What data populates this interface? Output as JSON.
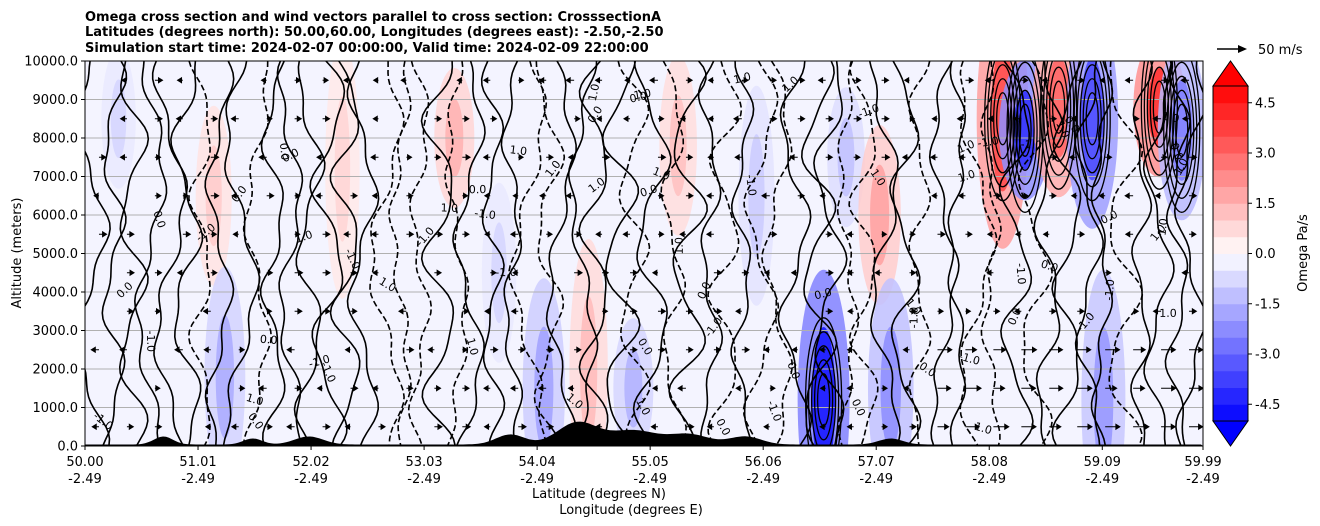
{
  "chart_data": {
    "type": "heatmap",
    "title_lines": [
      "Omega cross section and wind vectors parallel to cross section: CrosssectionA",
      "Latitudes (degrees north): 50.00,60.00, Longitudes (degrees east): -2.50,-2.50",
      "Simulation start time: 2024-02-07 00:00:00, Valid time: 2024-02-09 22:00:00"
    ],
    "ylabel": "Altitude (meters)",
    "xlabel_lines": [
      "Latitude (degrees N)",
      "Longitude (degrees E)"
    ],
    "y_ticks": [
      "0.0",
      "1000.0",
      "2000.0",
      "3000.0",
      "4000.0",
      "5000.0",
      "6000.0",
      "7000.0",
      "8000.0",
      "9000.0",
      "10000.0"
    ],
    "ylim": [
      0,
      10000
    ],
    "x_ticks": [
      {
        "lat": "50.00",
        "lon": "-2.49"
      },
      {
        "lat": "51.01",
        "lon": "-2.49"
      },
      {
        "lat": "52.02",
        "lon": "-2.49"
      },
      {
        "lat": "53.03",
        "lon": "-2.49"
      },
      {
        "lat": "54.04",
        "lon": "-2.49"
      },
      {
        "lat": "55.05",
        "lon": "-2.49"
      },
      {
        "lat": "56.06",
        "lon": "-2.49"
      },
      {
        "lat": "57.07",
        "lon": "-2.49"
      },
      {
        "lat": "58.08",
        "lon": "-2.49"
      },
      {
        "lat": "59.09",
        "lon": "-2.49"
      },
      {
        "lat": "59.99",
        "lon": "-2.49"
      }
    ],
    "xlim": [
      50.0,
      59.99
    ],
    "grid": "horizontal",
    "colorbar": {
      "label": "Omega Pa/s",
      "min": -5.0,
      "max": 5.0,
      "step": 0.5,
      "extend": "both",
      "ticks": [
        "-4.5",
        "-3.0",
        "-1.5",
        "0.0",
        "1.5",
        "3.0",
        "4.5"
      ],
      "tick_values": [
        -4.5,
        -3.0,
        -1.5,
        0.0,
        1.5,
        3.0,
        4.5
      ],
      "colormap": "bwr"
    },
    "quiver_key": {
      "label": "50 m/s",
      "value": 50
    },
    "contour_labels": [
      "0.0",
      "1.0",
      "-1.0",
      "10.0"
    ],
    "omega_features": [
      {
        "lat": 50.3,
        "alt": 8500,
        "value": -0.8
      },
      {
        "lat": 51.15,
        "alt": 6500,
        "value": 1.0
      },
      {
        "lat": 51.25,
        "alt": 1800,
        "value": -1.6
      },
      {
        "lat": 52.3,
        "alt": 7200,
        "value": 0.8
      },
      {
        "lat": 53.3,
        "alt": 8000,
        "value": 1.5
      },
      {
        "lat": 53.7,
        "alt": 4500,
        "value": -0.8
      },
      {
        "lat": 54.1,
        "alt": 1500,
        "value": -1.8
      },
      {
        "lat": 54.5,
        "alt": 2000,
        "value": 1.3
      },
      {
        "lat": 54.9,
        "alt": 1500,
        "value": -1.5
      },
      {
        "lat": 55.3,
        "alt": 7800,
        "value": 1.2
      },
      {
        "lat": 56.0,
        "alt": 6500,
        "value": -1.0
      },
      {
        "lat": 56.6,
        "alt": 1200,
        "value": -4.5
      },
      {
        "lat": 56.8,
        "alt": 7500,
        "value": -1.2
      },
      {
        "lat": 57.1,
        "alt": 6000,
        "value": 1.8
      },
      {
        "lat": 57.2,
        "alt": 1500,
        "value": -2.2
      },
      {
        "lat": 58.2,
        "alt": 8500,
        "value": 3.5
      },
      {
        "lat": 58.4,
        "alt": 8200,
        "value": -4.0
      },
      {
        "lat": 58.7,
        "alt": 8800,
        "value": 3.0
      },
      {
        "lat": 59.0,
        "alt": 8500,
        "value": -3.5
      },
      {
        "lat": 59.1,
        "alt": 1200,
        "value": -2.0
      },
      {
        "lat": 59.6,
        "alt": 8800,
        "value": 4.0
      },
      {
        "lat": 59.8,
        "alt": 8200,
        "value": -2.5
      }
    ]
  }
}
